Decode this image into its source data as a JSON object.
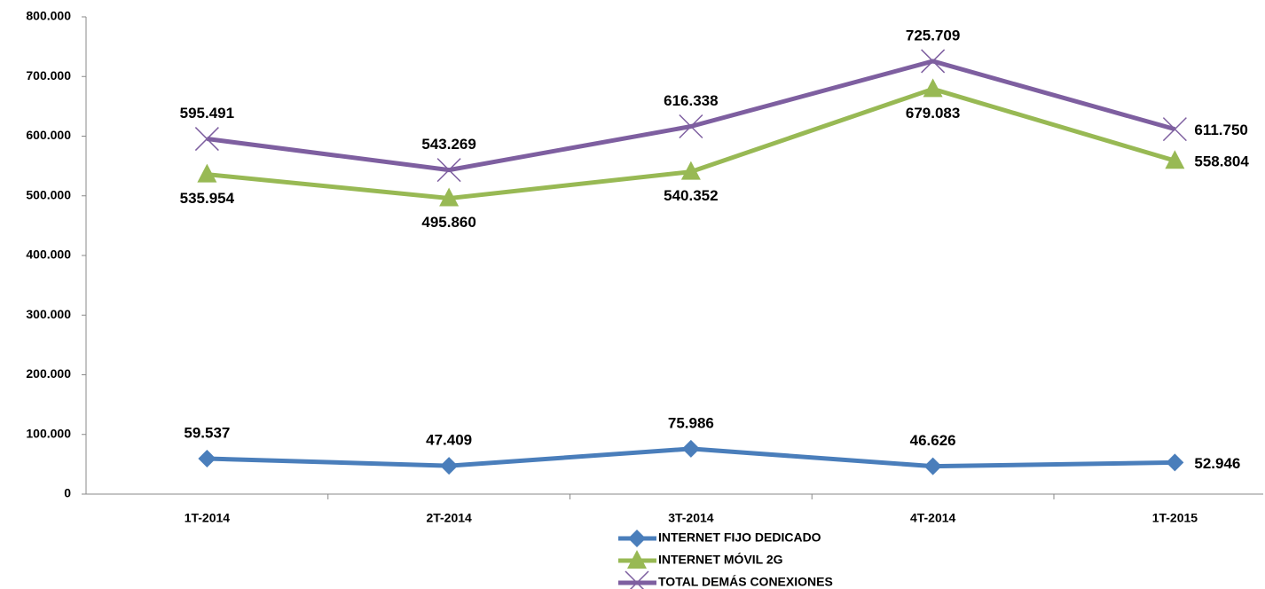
{
  "chart_data": {
    "type": "line",
    "categories": [
      "1T-2014",
      "2T-2014",
      "3T-2014",
      "4T-2014",
      "1T-2015"
    ],
    "series": [
      {
        "name": "INTERNET FIJO DEDICADO",
        "color": "#4a7ebb",
        "marker": "diamond",
        "values": [
          59537,
          47409,
          75986,
          46626,
          52946
        ],
        "value_labels": [
          "59.537",
          "47.409",
          "75.986",
          "46.626",
          "52.946"
        ]
      },
      {
        "name": "INTERNET MÓVIL 2G",
        "color": "#98b954",
        "marker": "triangle",
        "values": [
          535954,
          495860,
          540352,
          679083,
          558804
        ],
        "value_labels": [
          "535.954",
          "495.860",
          "540.352",
          "679.083",
          "558.804"
        ]
      },
      {
        "name": "TOTAL DEMÁS CONEXIONES",
        "color": "#7e5fa0",
        "marker": "x",
        "values": [
          595491,
          543269,
          616338,
          725709,
          611750
        ],
        "value_labels": [
          "595.491",
          "543.269",
          "616.338",
          "725.709",
          "611.750"
        ]
      }
    ],
    "ylim": [
      0,
      800000
    ],
    "yticks": [
      {
        "value": 0,
        "label": "0"
      },
      {
        "value": 100000,
        "label": "100.000"
      },
      {
        "value": 200000,
        "label": "200.000"
      },
      {
        "value": 300000,
        "label": "300.000"
      },
      {
        "value": 400000,
        "label": "400.000"
      },
      {
        "value": 500000,
        "label": "500.000"
      },
      {
        "value": 600000,
        "label": "600.000"
      },
      {
        "value": 700000,
        "label": "700.000"
      },
      {
        "value": 800000,
        "label": "800.000"
      }
    ],
    "grid": false,
    "legend": "bottom"
  }
}
